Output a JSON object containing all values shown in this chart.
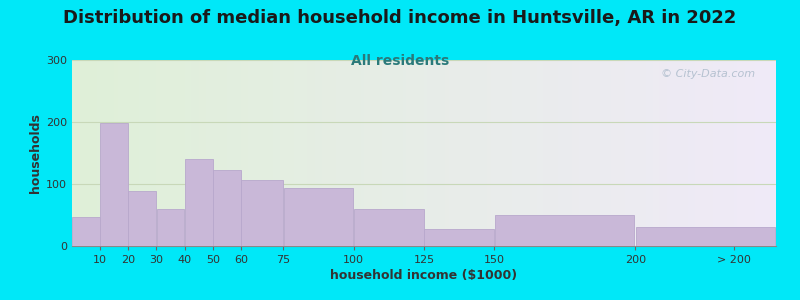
{
  "title": "Distribution of median household income in Huntsville, AR in 2022",
  "subtitle": "All residents",
  "xlabel": "household income ($1000)",
  "ylabel": "households",
  "bg_outer": "#00e8f8",
  "bar_color": "#c9b8d8",
  "bar_edge_color": "#b8a8cc",
  "values": [
    47,
    198,
    88,
    60,
    140,
    122,
    107,
    93,
    60,
    28,
    50,
    30
  ],
  "ylim": [
    0,
    300
  ],
  "yticks": [
    0,
    100,
    200,
    300
  ],
  "title_fontsize": 13,
  "subtitle_fontsize": 10,
  "axis_label_fontsize": 9,
  "tick_fontsize": 8,
  "watermark_text": "© City-Data.com",
  "watermark_color": "#a8b8c8",
  "grid_color": "#c8d8b8",
  "title_color": "#1a1a1a",
  "subtitle_color": "#2a7a7a",
  "bg_left_color": "#dff0d8",
  "bg_right_color": "#f0eaf8"
}
